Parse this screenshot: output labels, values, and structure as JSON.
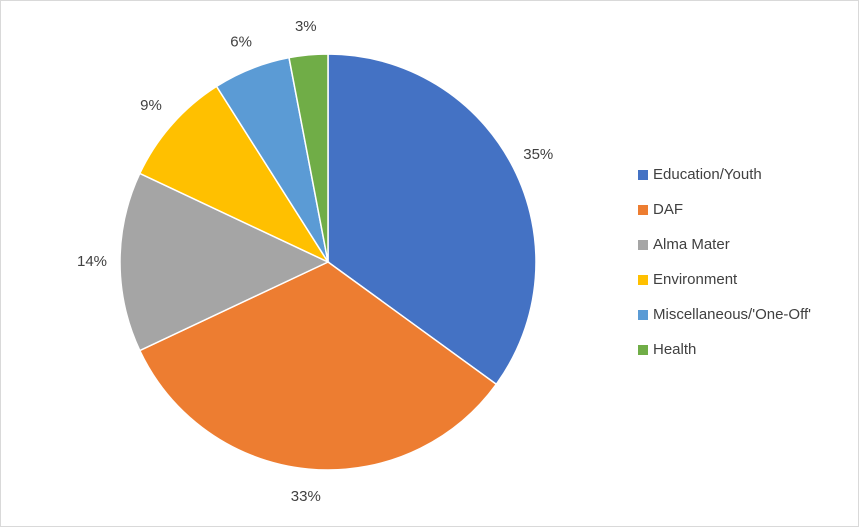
{
  "chart_data": {
    "type": "pie",
    "categories": [
      "Education/Youth",
      "DAF",
      "Alma Mater",
      "Environment",
      "Miscellaneous/'One-Off'",
      "Health"
    ],
    "values": [
      35,
      33,
      14,
      9,
      6,
      3
    ],
    "value_labels": [
      "35%",
      "33%",
      "14%",
      "9%",
      "6%",
      "3%"
    ],
    "colors": [
      "#4472c4",
      "#ed7d31",
      "#a5a5a5",
      "#ffc000",
      "#5b9bd5",
      "#70ad47"
    ],
    "legend": "right"
  }
}
